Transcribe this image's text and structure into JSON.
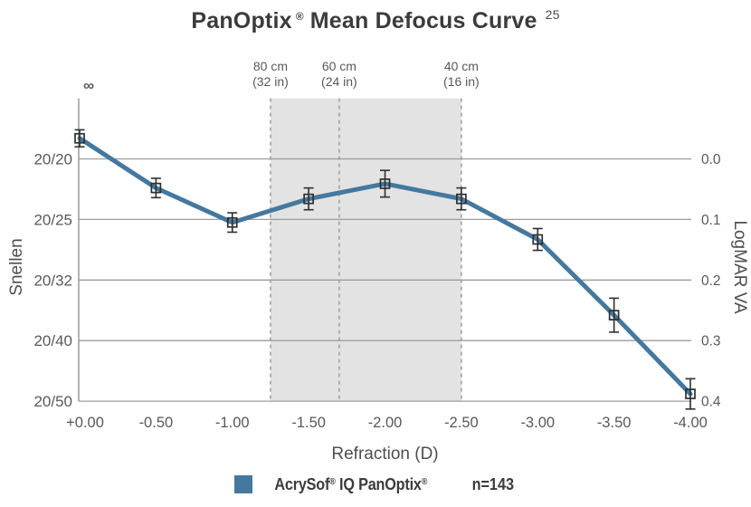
{
  "title": {
    "brand": "PanOptix",
    "reg_mark": "®",
    "rest": "Mean Defocus Curve",
    "reference": "25"
  },
  "chart_data": {
    "type": "line",
    "title": "PanOptix® Mean Defocus Curve",
    "reference_superscript": "25",
    "xlabel": "Refraction (D)",
    "ylabel_left": "Snellen",
    "ylabel_right": "LogMAR VA",
    "xlim_d": [
      0,
      -4
    ],
    "ylim_logmar": [
      -0.1,
      0.4
    ],
    "grid": true,
    "legend_position": "bottom",
    "infinity_symbol": "∞",
    "x_tick_labels": [
      "+0.00",
      "-0.50",
      "-1.00",
      "-1.50",
      "-2.00",
      "-2.50",
      "-3.00",
      "-3.50",
      "-4.00"
    ],
    "y_ticks": [
      {
        "logmar": 0.0,
        "snellen": "20/20",
        "logmar_label": "0.0"
      },
      {
        "logmar": 0.1,
        "snellen": "20/25",
        "logmar_label": "0.1"
      },
      {
        "logmar": 0.2,
        "snellen": "20/32",
        "logmar_label": "0.2"
      },
      {
        "logmar": 0.3,
        "snellen": "20/40",
        "logmar_label": "0.3"
      },
      {
        "logmar": 0.4,
        "snellen": "20/50",
        "logmar_label": "0.4"
      }
    ],
    "series": [
      {
        "name": "AcrySof® IQ PanOptix®",
        "n": "n=143",
        "color": "#45789E",
        "x_d": [
          0.0,
          -0.5,
          -1.0,
          -1.5,
          -2.0,
          -2.5,
          -3.0,
          -3.5,
          -4.0
        ],
        "logmar_va": [
          -0.034,
          0.048,
          0.105,
          0.066,
          0.041,
          0.066,
          0.133,
          0.258,
          0.388
        ],
        "error_logmar": [
          0.014,
          0.016,
          0.016,
          0.018,
          0.022,
          0.018,
          0.018,
          0.028,
          0.025
        ]
      }
    ],
    "shaded_region": {
      "from_d": -1.25,
      "to_d": -2.5
    },
    "near_distance_markers": [
      {
        "d": -1.25,
        "line1": "80 cm",
        "line2": "(32 in)"
      },
      {
        "d": -1.7,
        "line1": "60 cm",
        "line2": "(24 in)"
      },
      {
        "d": -2.5,
        "line1": "40 cm",
        "line2": "(16 in)"
      }
    ]
  },
  "legend": {
    "swatch_color": "#45789E",
    "brand_part1": "AcrySof",
    "reg1": "®",
    "brand_part2": " IQ PanOptix",
    "reg2": "®",
    "sample_size": "n=143"
  },
  "colors": {
    "series_blue": "#45789E",
    "grid_gray": "#9C9C9C",
    "shade_gray": "#E3E3E3",
    "dash_gray": "#9C9C9C",
    "error_bar": "#2F2F2F",
    "axis_text": "#58595B"
  }
}
